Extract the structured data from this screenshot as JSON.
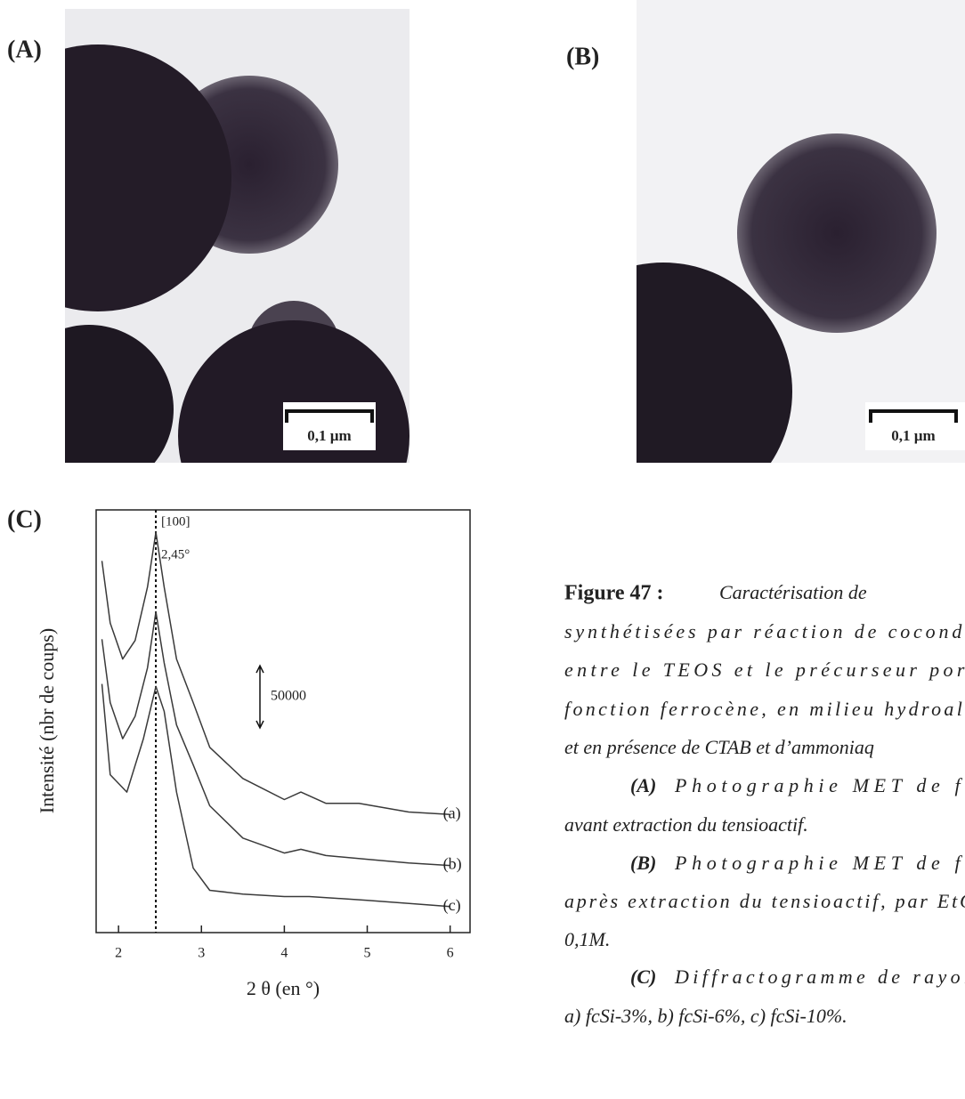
{
  "panels": {
    "a": {
      "label": "(A)",
      "scale": "0,1 µm"
    },
    "b": {
      "label": "(B)",
      "scale": "0,1 µm"
    },
    "c": {
      "label": "(C)"
    }
  },
  "chart_data": {
    "type": "line",
    "y_label": "Intensité (nbr de coups)",
    "x_label": "2 θ (en °)",
    "xlim": [
      1.73,
      6.24
    ],
    "xticks": [
      2,
      3,
      4,
      5,
      6
    ],
    "ylim": [
      0,
      340000
    ],
    "grid": false,
    "reference_line": {
      "value": 2.45,
      "label": "2,45°"
    },
    "reference_name": "[100]",
    "scale_bar": 50000,
    "series": [
      {
        "name": "(a)",
        "color": "#3a3a3a",
        "x": [
          1.8,
          1.9,
          2.05,
          2.2,
          2.35,
          2.45,
          2.55,
          2.7,
          2.9,
          3.1,
          3.5,
          4.0,
          4.2,
          4.5,
          4.9,
          5.5,
          6.0
        ],
        "values": [
          299000,
          249000,
          220000,
          235000,
          278000,
          322000,
          278000,
          220000,
          185000,
          149000,
          124000,
          107000,
          113000,
          104000,
          104000,
          97000,
          95000
        ]
      },
      {
        "name": "(b)",
        "color": "#3a3a3a",
        "x": [
          1.8,
          1.9,
          2.05,
          2.2,
          2.35,
          2.45,
          2.55,
          2.7,
          2.9,
          3.1,
          3.5,
          4.0,
          4.2,
          4.5,
          5.0,
          5.5,
          6.0
        ],
        "values": [
          236000,
          185000,
          156000,
          174000,
          213000,
          258000,
          217000,
          167000,
          135000,
          102000,
          76000,
          64000,
          67000,
          62000,
          59000,
          56000,
          54000
        ]
      },
      {
        "name": "(c)",
        "color": "#3a3a3a",
        "x": [
          1.8,
          1.9,
          2.1,
          2.3,
          2.45,
          2.55,
          2.7,
          2.9,
          3.1,
          3.5,
          4.0,
          4.3,
          5.0,
          6.0
        ],
        "values": [
          200000,
          127000,
          113000,
          156000,
          198000,
          178000,
          113000,
          52000,
          34000,
          31000,
          29000,
          29000,
          26000,
          21000
        ]
      }
    ]
  },
  "caption": {
    "figure": "Figure 47 :",
    "lines": [
      "Caractérisation de",
      "synthétisées par réaction de coconde",
      "entre le TEOS et le précurseur port",
      "fonction ferrocène, en milieu hydroalc",
      "et en présence de CTAB et d’ammoniaq"
    ],
    "items": [
      {
        "label": "(A)",
        "lines": [
          "Photographie MET de fc",
          "avant extraction du tensioactif."
        ]
      },
      {
        "label": "(B)",
        "lines": [
          "Photographie MET de fc",
          "après extraction du tensioactif, par EtO",
          "0,1M."
        ]
      },
      {
        "label": "(C)",
        "lines": [
          "Diffractogramme de rayon",
          "a) fcSi-3%, b) fcSi-6%, c) fcSi-10%."
        ]
      }
    ]
  }
}
